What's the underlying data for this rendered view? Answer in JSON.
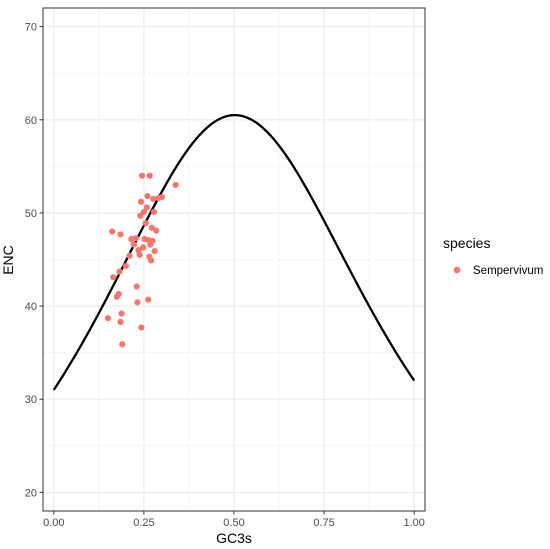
{
  "chart_data": {
    "type": "scatter",
    "title": "",
    "xlabel": "GC3s",
    "ylabel": "ENC",
    "xlim": [
      -0.03,
      1.03
    ],
    "ylim": [
      18,
      72
    ],
    "x_ticks": [
      0.0,
      0.25,
      0.5,
      0.75,
      1.0
    ],
    "x_tick_labels": [
      "0.00",
      "0.25",
      "0.50",
      "0.75",
      "1.00"
    ],
    "y_ticks": [
      20,
      30,
      40,
      50,
      60,
      70
    ],
    "y_tick_labels": [
      "20",
      "30",
      "40",
      "50",
      "60",
      "70"
    ],
    "grid": true,
    "legend": {
      "title": "species",
      "placement": "right",
      "entries": [
        {
          "label": "Sempervivum",
          "color": "#F8766D"
        }
      ]
    },
    "curve": {
      "description": "expected ENC curve: 2 + GC3s + 29 / (GC3s^2 + (1 - GC3s)^2)",
      "color": "#000000",
      "x_range": [
        0.0,
        1.0
      ]
    },
    "series": [
      {
        "name": "Sempervivum",
        "color": "#F8766D",
        "points": [
          {
            "x": 0.15,
            "y": 38.7
          },
          {
            "x": 0.165,
            "y": 43.1
          },
          {
            "x": 0.175,
            "y": 41.0
          },
          {
            "x": 0.18,
            "y": 41.3
          },
          {
            "x": 0.182,
            "y": 43.7
          },
          {
            "x": 0.185,
            "y": 38.3
          },
          {
            "x": 0.188,
            "y": 39.2
          },
          {
            "x": 0.19,
            "y": 35.9
          },
          {
            "x": 0.2,
            "y": 44.3
          },
          {
            "x": 0.162,
            "y": 48.0
          },
          {
            "x": 0.185,
            "y": 47.7
          },
          {
            "x": 0.21,
            "y": 45.4
          },
          {
            "x": 0.215,
            "y": 47.2
          },
          {
            "x": 0.222,
            "y": 46.6
          },
          {
            "x": 0.228,
            "y": 47.3
          },
          {
            "x": 0.23,
            "y": 42.1
          },
          {
            "x": 0.232,
            "y": 40.4
          },
          {
            "x": 0.235,
            "y": 46.0
          },
          {
            "x": 0.238,
            "y": 45.5
          },
          {
            "x": 0.24,
            "y": 49.7
          },
          {
            "x": 0.242,
            "y": 51.2
          },
          {
            "x": 0.243,
            "y": 37.7
          },
          {
            "x": 0.245,
            "y": 54.0
          },
          {
            "x": 0.248,
            "y": 46.3
          },
          {
            "x": 0.25,
            "y": 50.1
          },
          {
            "x": 0.252,
            "y": 47.2
          },
          {
            "x": 0.255,
            "y": 48.9
          },
          {
            "x": 0.258,
            "y": 50.6
          },
          {
            "x": 0.26,
            "y": 51.8
          },
          {
            "x": 0.262,
            "y": 40.7
          },
          {
            "x": 0.263,
            "y": 47.1
          },
          {
            "x": 0.265,
            "y": 45.3
          },
          {
            "x": 0.266,
            "y": 54.0
          },
          {
            "x": 0.268,
            "y": 46.6
          },
          {
            "x": 0.27,
            "y": 44.9
          },
          {
            "x": 0.272,
            "y": 48.4
          },
          {
            "x": 0.274,
            "y": 47.0
          },
          {
            "x": 0.276,
            "y": 51.5
          },
          {
            "x": 0.278,
            "y": 50.1
          },
          {
            "x": 0.28,
            "y": 45.9
          },
          {
            "x": 0.284,
            "y": 48.1
          },
          {
            "x": 0.29,
            "y": 51.6
          },
          {
            "x": 0.3,
            "y": 51.7
          },
          {
            "x": 0.338,
            "y": 53.0
          }
        ]
      }
    ]
  }
}
